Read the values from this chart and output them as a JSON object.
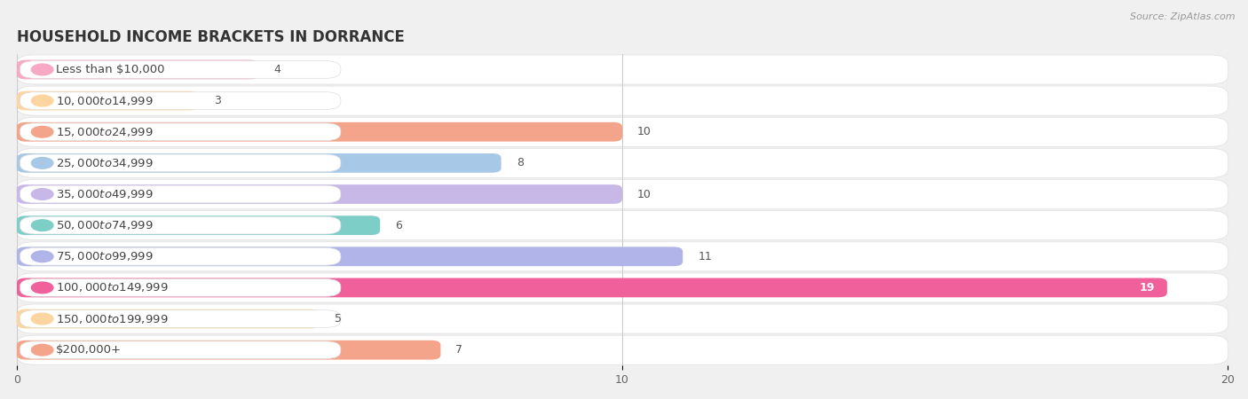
{
  "title": "HOUSEHOLD INCOME BRACKETS IN DORRANCE",
  "source": "Source: ZipAtlas.com",
  "categories": [
    "Less than $10,000",
    "$10,000 to $14,999",
    "$15,000 to $24,999",
    "$25,000 to $34,999",
    "$35,000 to $49,999",
    "$50,000 to $74,999",
    "$75,000 to $99,999",
    "$100,000 to $149,999",
    "$150,000 to $199,999",
    "$200,000+"
  ],
  "values": [
    4,
    3,
    10,
    8,
    10,
    6,
    11,
    19,
    5,
    7
  ],
  "bar_colors": [
    "#f7a8c4",
    "#fdd5a0",
    "#f4a48a",
    "#a8c8e8",
    "#c8b8e8",
    "#7ecec8",
    "#b0b4e8",
    "#f0609a",
    "#fdd5a0",
    "#f4a48a"
  ],
  "bar_bg_colors": [
    "#fce4ec",
    "#fff3e0",
    "#fbe9e7",
    "#e3f2fd",
    "#ede7f6",
    "#e0f2f1",
    "#e8eaf6",
    "#fce4ec",
    "#fff3e0",
    "#fbe9e7"
  ],
  "xlim": [
    0,
    20
  ],
  "xticks": [
    0,
    10,
    20
  ],
  "background_color": "#f0f0f0",
  "row_bg_color": "#ffffff",
  "title_fontsize": 12,
  "label_fontsize": 9.5,
  "value_fontsize": 9,
  "bar_height": 0.62
}
